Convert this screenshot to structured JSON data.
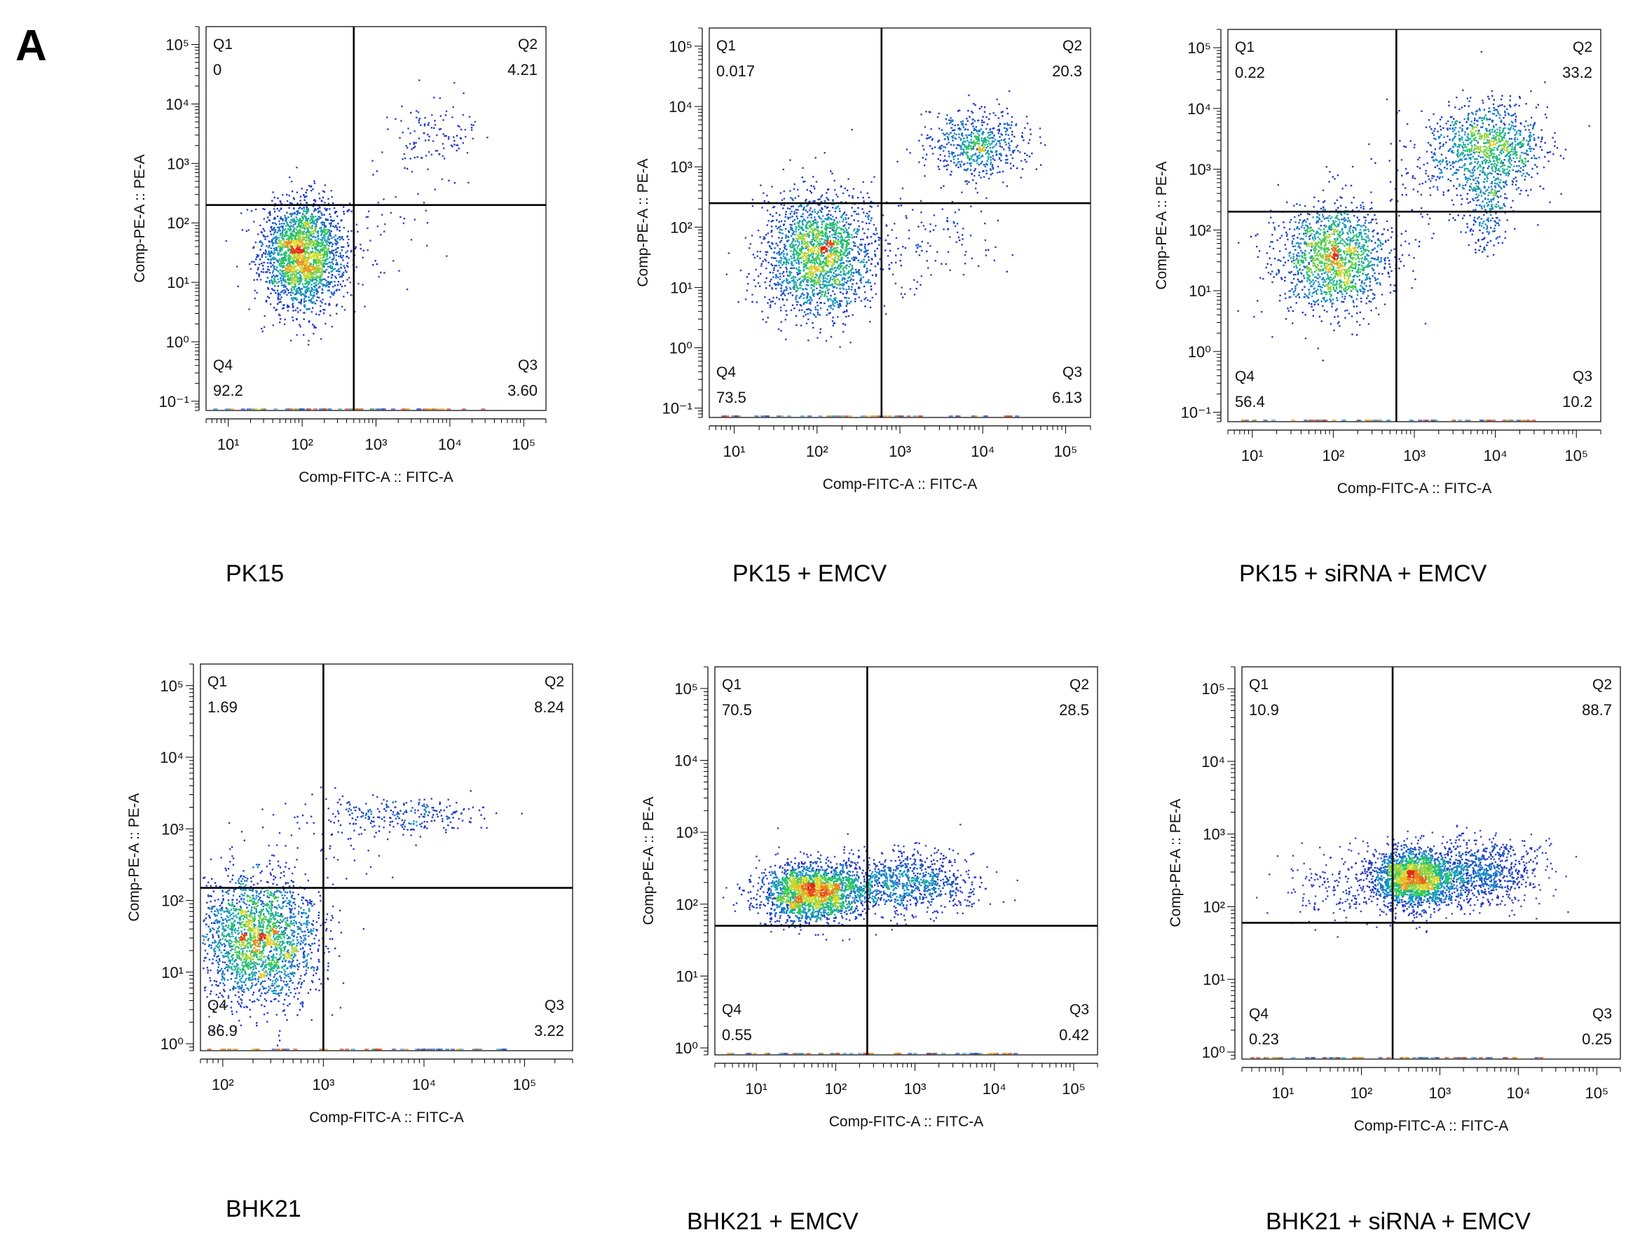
{
  "figure": {
    "panel_letter": "A"
  },
  "chart_data": [
    {
      "type": "scatter",
      "subtype": "flow-cytometry-quadrant-density",
      "caption": "PK15",
      "xlabel": "Comp-FITC-A :: FITC-A",
      "ylabel": "Comp-PE-A :: PE-A",
      "xscale": "log",
      "yscale": "log",
      "xlim": [
        5,
        200000
      ],
      "ylim": [
        0.07,
        200000
      ],
      "x_ticks": [
        10,
        100,
        1000,
        10000,
        100000
      ],
      "y_ticks": [
        0.1,
        1,
        10,
        100,
        1000,
        10000,
        100000
      ],
      "gate": {
        "x": 500,
        "y": 200
      },
      "quadrants": [
        {
          "name": "Q1",
          "value": "0",
          "position": "top-left"
        },
        {
          "name": "Q2",
          "value": "4.21",
          "position": "top-right"
        },
        {
          "name": "Q3",
          "value": "3.60",
          "position": "bottom-right"
        },
        {
          "name": "Q4",
          "value": "92.2",
          "position": "bottom-left"
        }
      ],
      "populations": [
        {
          "x": 100,
          "y": 30,
          "sx": 0.28,
          "sy": 0.45,
          "n": 2200
        },
        {
          "x": 6000,
          "y": 3000,
          "sx": 0.3,
          "sy": 0.3,
          "n": 120
        },
        {
          "x": 700,
          "y": 60,
          "sx": 0.5,
          "sy": 0.6,
          "n": 60
        }
      ]
    },
    {
      "type": "scatter",
      "subtype": "flow-cytometry-quadrant-density",
      "caption": "PK15 + EMCV",
      "xlabel": "Comp-FITC-A :: FITC-A",
      "ylabel": "Comp-PE-A :: PE-A",
      "xscale": "log",
      "yscale": "log",
      "xlim": [
        5,
        200000
      ],
      "ylim": [
        0.07,
        200000
      ],
      "x_ticks": [
        10,
        100,
        1000,
        10000,
        100000
      ],
      "y_ticks": [
        0.1,
        1,
        10,
        100,
        1000,
        10000,
        100000
      ],
      "gate": {
        "x": 600,
        "y": 250
      },
      "quadrants": [
        {
          "name": "Q1",
          "value": "0.017",
          "position": "top-left"
        },
        {
          "name": "Q2",
          "value": "20.3",
          "position": "top-right"
        },
        {
          "name": "Q3",
          "value": "6.13",
          "position": "bottom-right"
        },
        {
          "name": "Q4",
          "value": "73.5",
          "position": "bottom-left"
        }
      ],
      "populations": [
        {
          "x": 100,
          "y": 35,
          "sx": 0.32,
          "sy": 0.5,
          "n": 1900
        },
        {
          "x": 8000,
          "y": 2500,
          "sx": 0.3,
          "sy": 0.28,
          "n": 600
        },
        {
          "x": 1500,
          "y": 60,
          "sx": 0.5,
          "sy": 0.5,
          "n": 150
        }
      ]
    },
    {
      "type": "scatter",
      "subtype": "flow-cytometry-quadrant-density",
      "caption": "PK15 + siRNA + EMCV",
      "xlabel": "Comp-FITC-A :: FITC-A",
      "ylabel": "Comp-PE-A :: PE-A",
      "xscale": "log",
      "yscale": "log",
      "xlim": [
        5,
        200000
      ],
      "ylim": [
        0.07,
        200000
      ],
      "x_ticks": [
        10,
        100,
        1000,
        10000,
        100000
      ],
      "y_ticks": [
        0.1,
        1,
        10,
        100,
        1000,
        10000,
        100000
      ],
      "gate": {
        "x": 600,
        "y": 200
      },
      "quadrants": [
        {
          "name": "Q1",
          "value": "0.22",
          "position": "top-left"
        },
        {
          "name": "Q2",
          "value": "33.2",
          "position": "top-right"
        },
        {
          "name": "Q3",
          "value": "10.2",
          "position": "bottom-right"
        },
        {
          "name": "Q4",
          "value": "56.4",
          "position": "bottom-left"
        }
      ],
      "populations": [
        {
          "x": 100,
          "y": 35,
          "sx": 0.35,
          "sy": 0.45,
          "n": 1500
        },
        {
          "x": 8000,
          "y": 2500,
          "sx": 0.35,
          "sy": 0.35,
          "n": 900
        },
        {
          "x": 8000,
          "y": 300,
          "sx": 0.15,
          "sy": 0.45,
          "n": 250
        },
        {
          "x": 2000,
          "y": 800,
          "sx": 0.5,
          "sy": 0.6,
          "n": 150
        }
      ]
    },
    {
      "type": "scatter",
      "subtype": "flow-cytometry-quadrant-density",
      "caption": "BHK21",
      "xlabel": "Comp-FITC-A :: FITC-A",
      "ylabel": "Comp-PE-A :: PE-A",
      "xscale": "log",
      "yscale": "log",
      "xlim": [
        60,
        300000
      ],
      "ylim": [
        0.8,
        200000
      ],
      "x_ticks": [
        100,
        1000,
        10000,
        100000
      ],
      "y_ticks": [
        1,
        10,
        100,
        1000,
        10000,
        100000
      ],
      "gate": {
        "x": 1000,
        "y": 150
      },
      "quadrants": [
        {
          "name": "Q1",
          "value": "1.69",
          "position": "top-left"
        },
        {
          "name": "Q2",
          "value": "8.24",
          "position": "top-right"
        },
        {
          "name": "Q3",
          "value": "3.22",
          "position": "bottom-right"
        },
        {
          "name": "Q4",
          "value": "86.9",
          "position": "bottom-left"
        }
      ],
      "populations": [
        {
          "x": 220,
          "y": 30,
          "sx": 0.3,
          "sy": 0.45,
          "n": 2200
        },
        {
          "x": 6000,
          "y": 1500,
          "sx": 0.4,
          "sy": 0.13,
          "n": 250
        },
        {
          "x": 600,
          "y": 1000,
          "sx": 0.5,
          "sy": 0.4,
          "n": 50
        }
      ]
    },
    {
      "type": "scatter",
      "subtype": "flow-cytometry-quadrant-density",
      "caption": "BHK21 + EMCV",
      "xlabel": "Comp-FITC-A :: FITC-A",
      "ylabel": "Comp-PE-A :: PE-A",
      "xscale": "log",
      "yscale": "log",
      "xlim": [
        3,
        200000
      ],
      "ylim": [
        0.8,
        200000
      ],
      "x_ticks": [
        10,
        100,
        1000,
        10000,
        100000
      ],
      "y_ticks": [
        1,
        10,
        100,
        1000,
        10000,
        100000
      ],
      "gate": {
        "x": 250,
        "y": 50
      },
      "quadrants": [
        {
          "name": "Q1",
          "value": "70.5",
          "position": "top-left"
        },
        {
          "name": "Q2",
          "value": "28.5",
          "position": "top-right"
        },
        {
          "name": "Q3",
          "value": "0.42",
          "position": "bottom-right"
        },
        {
          "name": "Q4",
          "value": "0.55",
          "position": "bottom-left"
        }
      ],
      "populations": [
        {
          "x": 50,
          "y": 150,
          "sx": 0.32,
          "sy": 0.2,
          "n": 2000
        },
        {
          "x": 800,
          "y": 200,
          "sx": 0.45,
          "sy": 0.22,
          "n": 900
        }
      ]
    },
    {
      "type": "scatter",
      "subtype": "flow-cytometry-quadrant-density",
      "caption": "BHK21 + siRNA + EMCV",
      "xlabel": "Comp-FITC-A :: FITC-A",
      "ylabel": "Comp-PE-A :: PE-A",
      "xscale": "log",
      "yscale": "log",
      "xlim": [
        3,
        200000
      ],
      "ylim": [
        0.8,
        200000
      ],
      "x_ticks": [
        10,
        100,
        1000,
        10000,
        100000
      ],
      "y_ticks": [
        1,
        10,
        100,
        1000,
        10000,
        100000
      ],
      "gate": {
        "x": 250,
        "y": 60
      },
      "quadrants": [
        {
          "name": "Q1",
          "value": "10.9",
          "position": "top-left"
        },
        {
          "name": "Q2",
          "value": "88.7",
          "position": "top-right"
        },
        {
          "name": "Q3",
          "value": "0.25",
          "position": "bottom-right"
        },
        {
          "name": "Q4",
          "value": "0.23",
          "position": "bottom-left"
        }
      ],
      "populations": [
        {
          "x": 450,
          "y": 250,
          "sx": 0.25,
          "sy": 0.2,
          "n": 1800
        },
        {
          "x": 3000,
          "y": 300,
          "sx": 0.4,
          "sy": 0.22,
          "n": 900
        },
        {
          "x": 80,
          "y": 200,
          "sx": 0.45,
          "sy": 0.25,
          "n": 250
        }
      ]
    }
  ]
}
